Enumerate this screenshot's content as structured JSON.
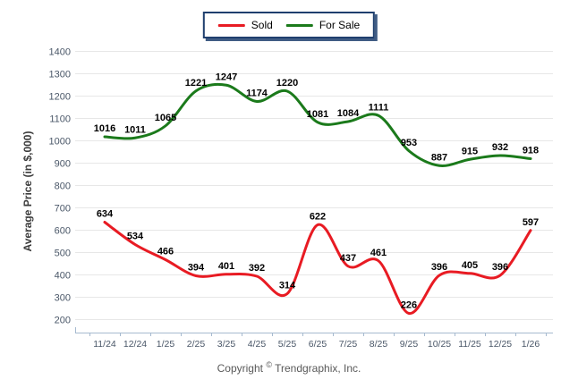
{
  "legend_box": {
    "items": [
      {
        "label": "Sold",
        "color": "#e81b23"
      },
      {
        "label": "For Sale",
        "color": "#1b7a1b"
      }
    ]
  },
  "footer": {
    "prefix": "Copyright",
    "copyright_symbol": "©",
    "suffix": "Trendgraphix, Inc."
  },
  "chart_data": {
    "type": "line",
    "title": "",
    "xlabel": "",
    "ylabel": "Average Price (in $,000)",
    "categories": [
      "11/24",
      "12/24",
      "1/25",
      "2/25",
      "3/25",
      "4/25",
      "5/25",
      "6/25",
      "7/25",
      "8/25",
      "9/25",
      "10/25",
      "11/25",
      "12/25",
      "1/26"
    ],
    "series": [
      {
        "name": "Sold",
        "color": "#e81b23",
        "values": [
          634,
          534,
          466,
          394,
          401,
          392,
          314,
          622,
          437,
          461,
          226,
          396,
          405,
          396,
          597
        ]
      },
      {
        "name": "For Sale",
        "color": "#1b7a1b",
        "values": [
          1016,
          1011,
          1065,
          1221,
          1247,
          1174,
          1220,
          1081,
          1084,
          1111,
          953,
          887,
          915,
          932,
          918
        ]
      }
    ],
    "ylim": [
      200,
      1400
    ],
    "y_tick_step": 100,
    "y_ticks": [
      200,
      300,
      400,
      500,
      600,
      700,
      800,
      900,
      1000,
      1100,
      1200,
      1300,
      1400
    ],
    "grid": true,
    "smooth": true,
    "legend_position": "top",
    "data_labels": true,
    "axis_color": "#a6bacf",
    "gridline_color": "#e7e7e7"
  }
}
